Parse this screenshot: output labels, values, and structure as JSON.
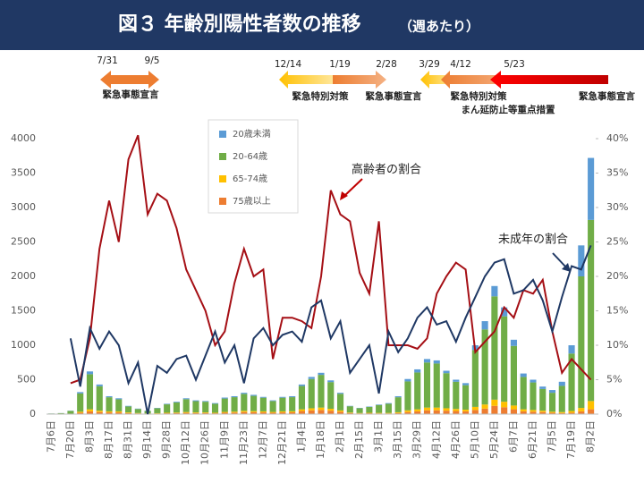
{
  "chart_data": {
    "type": "bar",
    "title": "図３ 年齢別陽性者数の推移",
    "subtitle": "（週あたり）",
    "categories": [
      "7月6日",
      null,
      "7月20日",
      null,
      "8月3日",
      null,
      "8月17日",
      null,
      "8月31日",
      null,
      "9月14日",
      null,
      "9月28日",
      null,
      "10月12日",
      null,
      "10月26日",
      null,
      "11月9日",
      null,
      "11月23日",
      null,
      "12月7日",
      null,
      "12月21日",
      null,
      "1月4日",
      null,
      "1月18日",
      null,
      "2月1日",
      null,
      "2月15日",
      null,
      "3月1日",
      null,
      "3月15日",
      null,
      "3月29日",
      null,
      "4月12日",
      null,
      "4月26日",
      null,
      "5月10日",
      null,
      "5月24日",
      null,
      "6月7日",
      null,
      "6月21日",
      null,
      "7月5日",
      null,
      "7月19日",
      null,
      "8月2日"
    ],
    "series": [
      {
        "name": "20歳未満",
        "color": "#5b9bd5",
        "values": [
          1,
          1,
          3,
          20,
          40,
          25,
          15,
          15,
          8,
          5,
          3,
          5,
          8,
          10,
          13,
          12,
          10,
          10,
          14,
          14,
          16,
          15,
          12,
          10,
          12,
          14,
          22,
          30,
          30,
          25,
          15,
          6,
          5,
          6,
          8,
          10,
          15,
          35,
          45,
          50,
          45,
          35,
          30,
          30,
          70,
          120,
          150,
          130,
          90,
          50,
          40,
          35,
          40,
          60,
          120,
          450,
          900
        ]
      },
      {
        "name": "20-64歳",
        "color": "#70ad47",
        "values": [
          7,
          12,
          41,
          265,
          510,
          355,
          205,
          175,
          87,
          59,
          37,
          71,
          122,
          147,
          187,
          163,
          155,
          130,
          194,
          210,
          246,
          221,
          198,
          158,
          198,
          205,
          338,
          425,
          475,
          387,
          242,
          91,
          69,
          85,
          114,
          132,
          218,
          420,
          535,
          655,
          640,
          510,
          395,
          355,
          825,
          1090,
          1500,
          1240,
          865,
          470,
          400,
          315,
          275,
          380,
          835,
          1910,
          2630
        ]
      },
      {
        "name": "65-74歳",
        "color": "#ffc000",
        "values": [
          1,
          1,
          3,
          15,
          30,
          20,
          15,
          15,
          10,
          6,
          4,
          6,
          8,
          9,
          12,
          10,
          10,
          8,
          12,
          14,
          18,
          16,
          15,
          12,
          15,
          15,
          25,
          30,
          35,
          28,
          18,
          8,
          6,
          7,
          8,
          8,
          12,
          25,
          30,
          40,
          40,
          35,
          30,
          25,
          45,
          60,
          90,
          80,
          55,
          30,
          25,
          20,
          15,
          15,
          25,
          50,
          120
        ]
      },
      {
        "name": "75歳以上",
        "color": "#ed7d31",
        "values": [
          1,
          1,
          3,
          20,
          40,
          30,
          25,
          25,
          15,
          10,
          6,
          8,
          12,
          14,
          18,
          15,
          15,
          12,
          20,
          22,
          30,
          28,
          25,
          20,
          25,
          26,
          45,
          55,
          60,
          50,
          35,
          15,
          10,
          12,
          10,
          10,
          15,
          30,
          40,
          55,
          55,
          50,
          45,
          40,
          60,
          80,
          120,
          100,
          70,
          40,
          35,
          30,
          20,
          15,
          20,
          40,
          70
        ]
      },
      {
        "name": "高齢者の割合",
        "type": "line",
        "axis": "y2",
        "color": "#a50f15",
        "values": [
          null,
          null,
          4.5,
          5,
          11,
          24,
          31,
          25,
          37,
          40.5,
          29,
          32,
          31,
          27,
          21,
          18,
          15,
          10,
          12,
          19,
          24,
          20,
          21,
          8,
          14,
          14,
          13.5,
          12.5,
          20,
          32.5,
          29,
          28,
          20.5,
          17.5,
          28,
          10,
          10,
          10,
          9.5,
          11,
          17.5,
          20,
          22,
          21,
          9,
          10.5,
          12,
          15.5,
          14,
          18,
          17.5,
          19.5,
          12,
          6,
          8,
          6.5,
          5
        ]
      },
      {
        "name": "未成年の割合",
        "type": "line",
        "axis": "y2",
        "color": "#1f3864",
        "values": [
          null,
          null,
          11,
          4,
          12.5,
          9.5,
          12,
          10,
          4.5,
          7.5,
          0,
          7,
          6,
          8,
          8.5,
          5,
          8.5,
          12,
          7.5,
          10,
          4.5,
          11,
          12.5,
          10,
          11.5,
          12,
          10.5,
          15.5,
          16.5,
          11,
          13.5,
          6,
          8,
          10,
          3,
          12,
          9,
          11,
          14,
          15.5,
          13,
          13.5,
          10.5,
          14,
          17,
          20,
          22,
          22.5,
          17.5,
          18,
          19.5,
          16.5,
          12,
          17,
          21.5,
          21,
          24.5
        ]
      }
    ],
    "ylim": [
      0,
      4000
    ],
    "yticks": [
      0,
      500,
      1000,
      1500,
      2000,
      2500,
      3000,
      3500,
      4000
    ],
    "y2lim": [
      0,
      40
    ],
    "y2ticks": [
      {
        "value": 0,
        "label": "0%"
      },
      {
        "value": 5,
        "label": "5%"
      },
      {
        "value": 10,
        "label": "10%"
      },
      {
        "value": 15,
        "label": "15%"
      },
      {
        "value": 20,
        "label": "20%"
      },
      {
        "value": 25,
        "label": "25%"
      },
      {
        "value": 30,
        "label": "30%"
      },
      {
        "value": 35,
        "label": "35%"
      },
      {
        "value": 40,
        "label": "40%"
      }
    ],
    "grid": false,
    "legend": "upper left",
    "annotations": {
      "dates": [
        "7/31",
        "9/5",
        "12/14",
        "1/19",
        "2/28",
        "3/29",
        "4/12",
        "5/23"
      ],
      "labels": [
        "緊急事態宣言",
        "緊急特別対策",
        "緊急事態宣言",
        "緊急特別対策",
        "まん延防止等重点措置",
        "緊急事態宣言"
      ]
    }
  }
}
